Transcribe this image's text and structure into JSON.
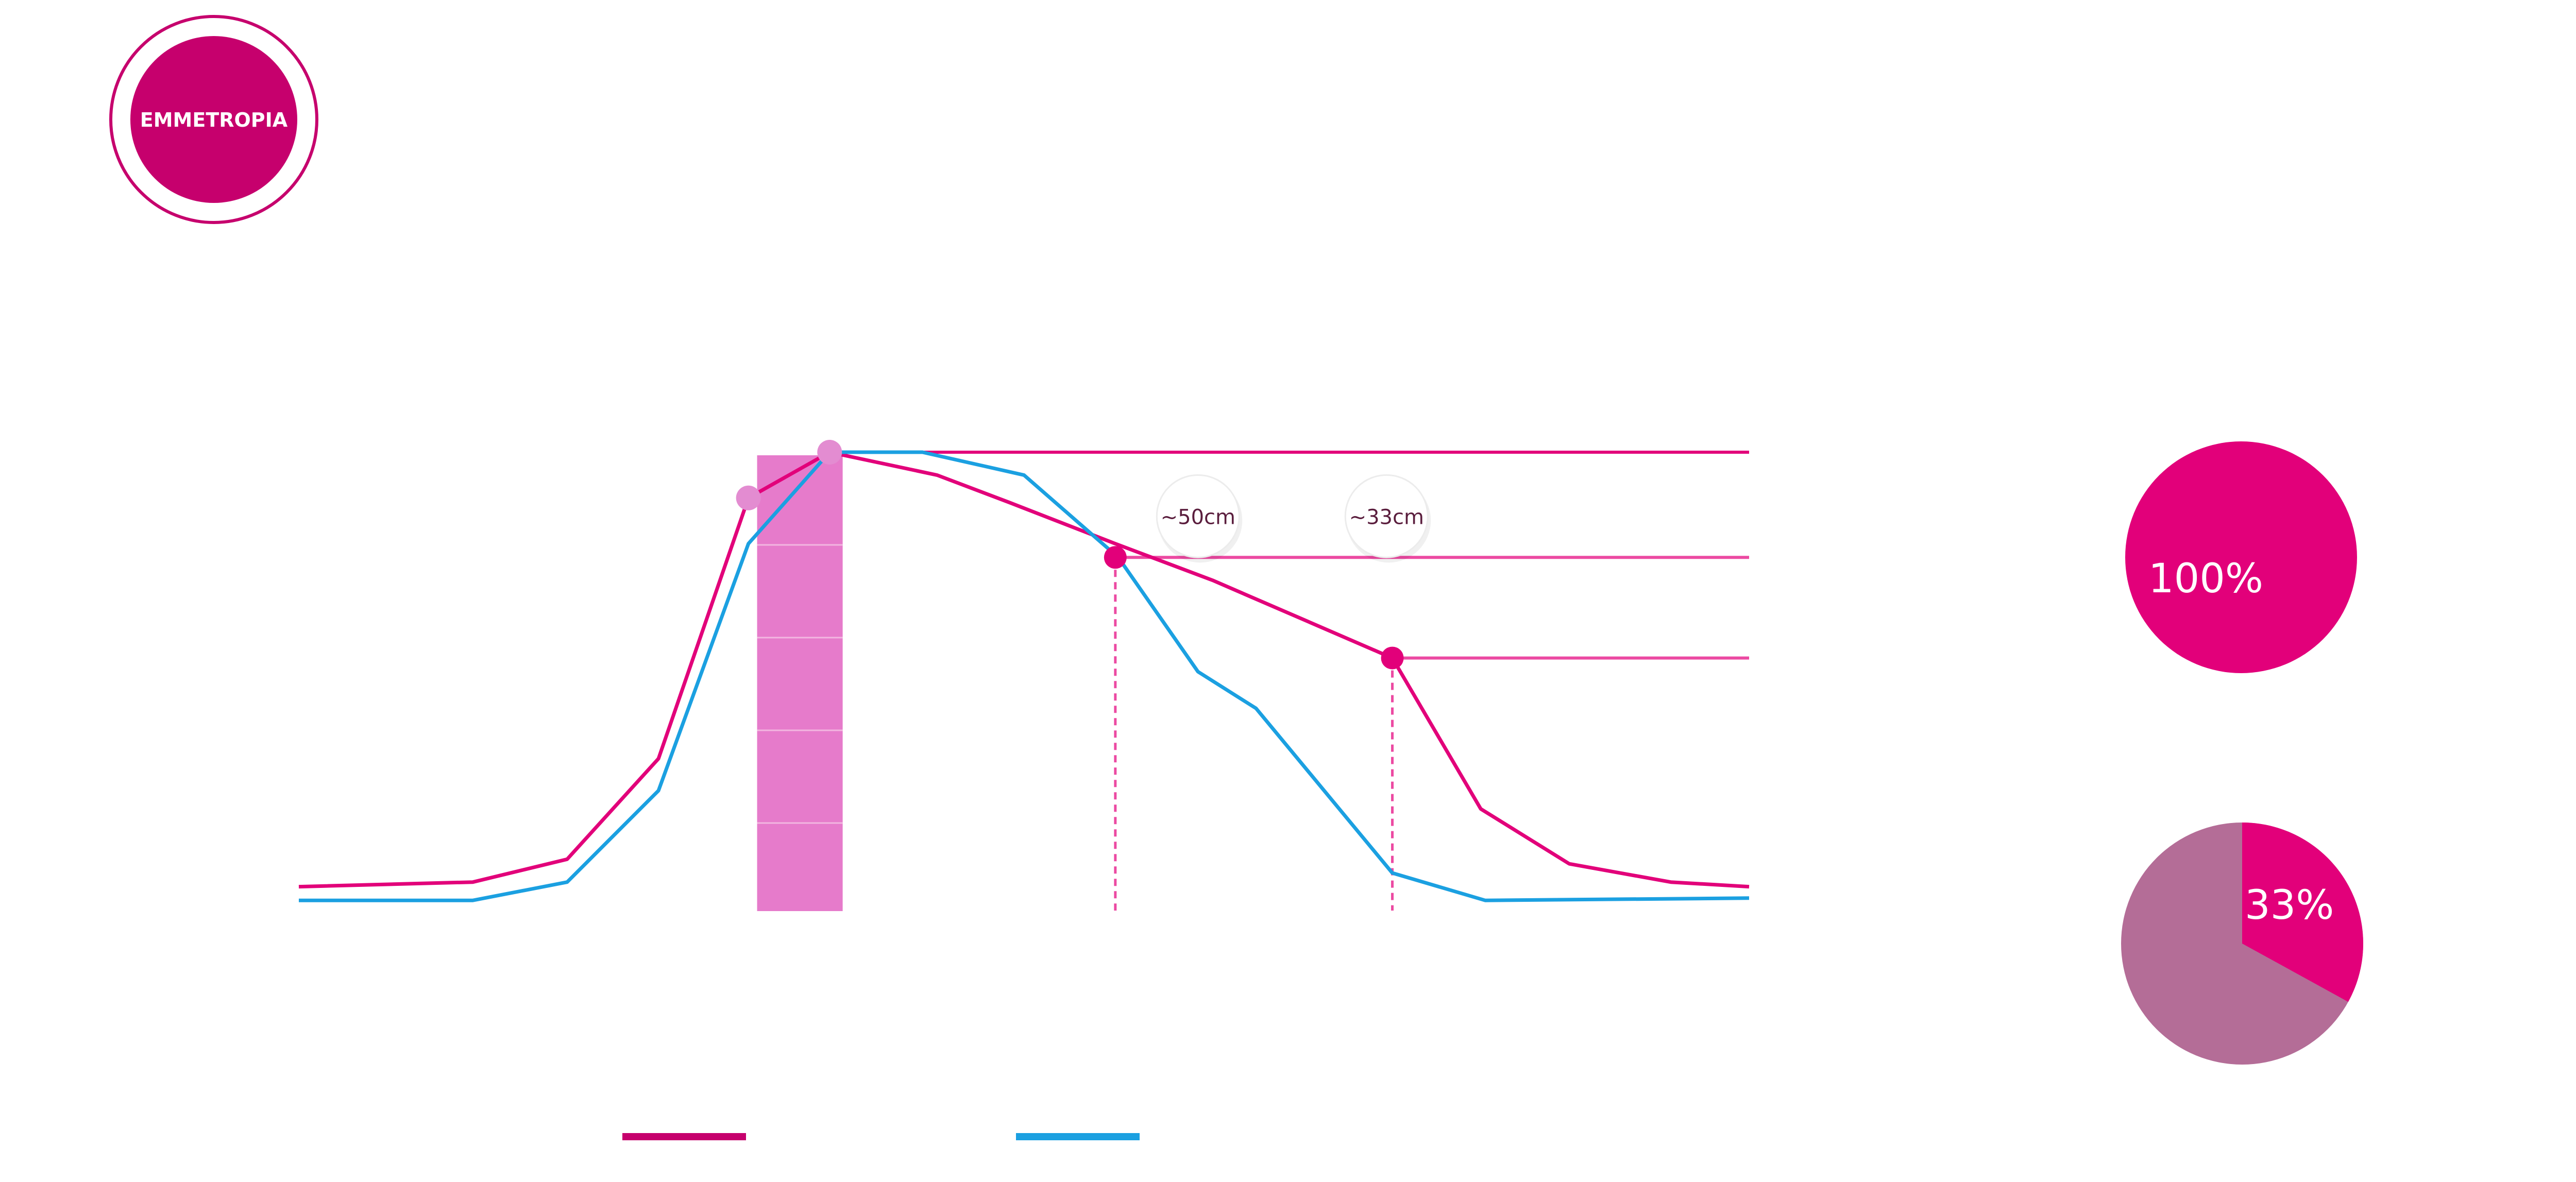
{
  "badge": {
    "label": "EMMETROPIA"
  },
  "colors": {
    "magenta": "#e2007a",
    "magenta_dark": "#c6006d",
    "magenta_light": "#ec4aa2",
    "lilac_band": "#e67bcb",
    "lilac_point": "#e38cd1",
    "blue": "#1ba0e1",
    "pie_muted": "#b46d97",
    "label_text": "#5a1d3d"
  },
  "chart_data": {
    "type": "line",
    "series": [
      {
        "color": "#e2007a",
        "values": [
          [
            0,
            0.05
          ],
          [
            12,
            0.06
          ],
          [
            18.5,
            0.11
          ],
          [
            24.8,
            0.33
          ],
          [
            31,
            0.9
          ],
          [
            36.6,
            1.0
          ],
          [
            44,
            0.95
          ],
          [
            49,
            0.89
          ],
          [
            56.3,
            0.8
          ],
          [
            63,
            0.72
          ],
          [
            75.4,
            0.55
          ],
          [
            81.5,
            0.22
          ],
          [
            87.6,
            0.1
          ],
          [
            94.6,
            0.06
          ],
          [
            100,
            0.05
          ]
        ]
      },
      {
        "color": "#1ba0e1",
        "values": [
          [
            0,
            0.02
          ],
          [
            12,
            0.02
          ],
          [
            18.5,
            0.06
          ],
          [
            24.8,
            0.26
          ],
          [
            31,
            0.8
          ],
          [
            36.6,
            1.0
          ],
          [
            43,
            1.0
          ],
          [
            50,
            0.95
          ],
          [
            56.5,
            0.77
          ],
          [
            62,
            0.52
          ],
          [
            66,
            0.44
          ],
          [
            75.4,
            0.08
          ],
          [
            81.8,
            0.02
          ],
          [
            100,
            0.025
          ]
        ]
      }
    ],
    "reference_lines": [
      {
        "y": 1.0,
        "x_from": 36.6,
        "x_to": 100
      },
      {
        "y": 0.77,
        "x_from": 56.3,
        "x_to": 100
      },
      {
        "y": 0.55,
        "x_from": 75.4,
        "x_to": 100
      }
    ],
    "band": {
      "x_from": 31.6,
      "x_to": 37.5
    },
    "points": [
      {
        "x": 31,
        "y": 0.9,
        "kind": "light"
      },
      {
        "x": 36.6,
        "y": 1.0,
        "kind": "light"
      },
      {
        "x": 56.3,
        "y": 0.77,
        "kind": "dark"
      },
      {
        "x": 75.4,
        "y": 0.55,
        "kind": "dark"
      }
    ],
    "callouts": [
      {
        "label": "~50cm",
        "x": 62,
        "y": 0.86
      },
      {
        "label": "~33cm",
        "x": 75,
        "y": 0.86
      }
    ],
    "xlim": [
      0,
      100
    ],
    "ylim": [
      0,
      1
    ],
    "grid": false,
    "pies": [
      {
        "value": 100,
        "label": "100%"
      },
      {
        "value": 33,
        "label": "33%"
      }
    ],
    "legend": [
      {
        "color": "#c6006d"
      },
      {
        "color": "#1ba0e1"
      }
    ]
  }
}
